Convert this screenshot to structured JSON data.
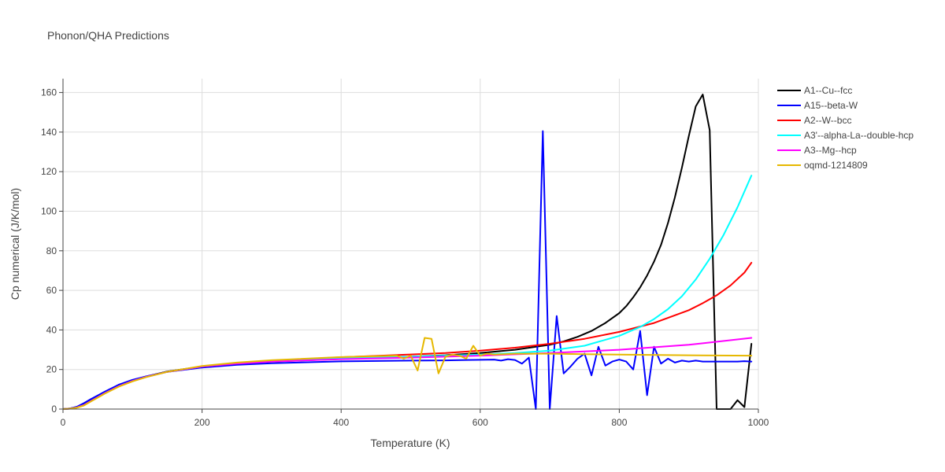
{
  "chart_data": {
    "type": "line",
    "title": "Phonon/QHA Predictions",
    "xlabel": "Temperature (K)",
    "ylabel": "Cp numerical (J/K/mol)",
    "xlim": [
      0,
      1000
    ],
    "ylim": [
      0,
      167
    ],
    "xticks": [
      0,
      200,
      400,
      600,
      800,
      1000
    ],
    "yticks": [
      0,
      20,
      40,
      60,
      80,
      100,
      120,
      140,
      160
    ],
    "grid": true,
    "legend_position": "top-right",
    "series": [
      {
        "name": "A1--Cu--fcc",
        "color": "#000000",
        "x": [
          0,
          10,
          20,
          30,
          40,
          60,
          80,
          100,
          120,
          150,
          200,
          250,
          300,
          400,
          500,
          550,
          600,
          650,
          700,
          720,
          740,
          760,
          780,
          800,
          810,
          820,
          830,
          840,
          850,
          860,
          870,
          880,
          890,
          900,
          910,
          920,
          930,
          940,
          945,
          950,
          960,
          970,
          980,
          990
        ],
        "y": [
          0,
          0.3,
          1.0,
          2.5,
          4.5,
          8.5,
          12,
          14.5,
          16.5,
          19,
          21.5,
          23,
          24,
          25.3,
          26.5,
          27.2,
          28.3,
          30,
          32.5,
          34.2,
          36.5,
          39.5,
          43.5,
          48.5,
          52,
          56.5,
          61.5,
          67.5,
          74.5,
          83,
          94,
          107,
          122,
          138,
          153,
          159,
          141,
          0,
          0,
          0,
          0,
          4.5,
          1,
          33
        ]
      },
      {
        "name": "A15--beta-W",
        "color": "#0000ff",
        "x": [
          0,
          10,
          20,
          30,
          40,
          60,
          80,
          100,
          120,
          150,
          200,
          250,
          300,
          400,
          500,
          550,
          580,
          600,
          620,
          630,
          640,
          650,
          660,
          670,
          680,
          690,
          700,
          710,
          720,
          730,
          740,
          750,
          760,
          770,
          780,
          790,
          800,
          810,
          820,
          830,
          840,
          850,
          860,
          870,
          880,
          890,
          900,
          910,
          920,
          930,
          940,
          950,
          960,
          970,
          980,
          990
        ],
        "y": [
          0,
          0.3,
          1.2,
          3.0,
          5.0,
          8.8,
          12.3,
          14.8,
          16.6,
          18.8,
          21.0,
          22.4,
          23.2,
          24.1,
          24.5,
          24.6,
          24.8,
          24.9,
          25.0,
          24.5,
          25.2,
          24.8,
          23.0,
          26.0,
          0,
          140.5,
          0,
          47,
          18,
          21.5,
          25.5,
          28,
          17,
          31.5,
          22,
          24,
          25,
          24,
          20,
          39.5,
          7,
          31.5,
          23,
          25.5,
          23.5,
          24.5,
          24,
          24.5,
          24,
          24,
          24,
          24,
          24,
          24,
          24.2,
          24
        ]
      },
      {
        "name": "A2--W--bcc",
        "color": "#ff0000",
        "x": [
          0,
          10,
          20,
          30,
          40,
          60,
          80,
          100,
          120,
          150,
          200,
          250,
          300,
          400,
          500,
          550,
          600,
          650,
          700,
          750,
          800,
          850,
          900,
          920,
          940,
          960,
          980,
          990
        ],
        "y": [
          0,
          0.2,
          0.8,
          2.0,
          4.0,
          8.0,
          11.5,
          14.2,
          16.3,
          18.8,
          21.5,
          23.2,
          24.5,
          26.2,
          27.6,
          28.3,
          29.5,
          31.0,
          33.0,
          35.5,
          39.0,
          43.5,
          50.0,
          53.5,
          57.5,
          62.5,
          69.0,
          74.0
        ]
      },
      {
        "name": "A3'--alpha-La--double-hcp",
        "color": "#00ffff",
        "x": [
          0,
          10,
          20,
          30,
          40,
          60,
          80,
          100,
          120,
          150,
          200,
          250,
          300,
          400,
          500,
          550,
          600,
          650,
          700,
          750,
          800,
          830,
          850,
          870,
          890,
          910,
          930,
          950,
          970,
          990
        ],
        "y": [
          0,
          0.2,
          0.8,
          2.0,
          4.0,
          8.0,
          11.5,
          14.2,
          16.3,
          18.8,
          21.5,
          23.2,
          24.3,
          25.6,
          26.5,
          27.0,
          27.5,
          28.3,
          29.5,
          32.0,
          37.0,
          41.5,
          45.5,
          50.5,
          57.0,
          65.5,
          76.0,
          88.0,
          102.0,
          118.0
        ]
      },
      {
        "name": "A3--Mg--hcp",
        "color": "#ff00ff",
        "x": [
          0,
          10,
          20,
          30,
          40,
          60,
          80,
          100,
          120,
          150,
          200,
          250,
          300,
          400,
          500,
          600,
          700,
          800,
          900,
          990
        ],
        "y": [
          0,
          0.2,
          0.8,
          2.0,
          4.0,
          8.0,
          11.5,
          14.2,
          16.3,
          18.8,
          21.5,
          23.0,
          24.0,
          25.2,
          26.0,
          27.0,
          28.3,
          30.0,
          32.5,
          36.0
        ]
      },
      {
        "name": "oqmd-1214809",
        "color": "#e6b800",
        "x": [
          0,
          10,
          20,
          30,
          40,
          60,
          80,
          100,
          120,
          150,
          200,
          250,
          300,
          400,
          480,
          490,
          500,
          510,
          520,
          530,
          540,
          550,
          560,
          570,
          580,
          590,
          600,
          610,
          620,
          650,
          700,
          800,
          900,
          990
        ],
        "y": [
          0,
          0.2,
          0.7,
          1.8,
          3.8,
          7.8,
          11.3,
          14.0,
          16.2,
          18.8,
          21.8,
          23.5,
          24.7,
          26.3,
          27.0,
          25.5,
          27.0,
          19.5,
          36.0,
          35.5,
          18.0,
          26.5,
          27.5,
          27.0,
          25.5,
          32.0,
          27.0,
          28.0,
          27.5,
          28.0,
          28.0,
          27.5,
          27.2,
          27.0
        ]
      }
    ]
  }
}
